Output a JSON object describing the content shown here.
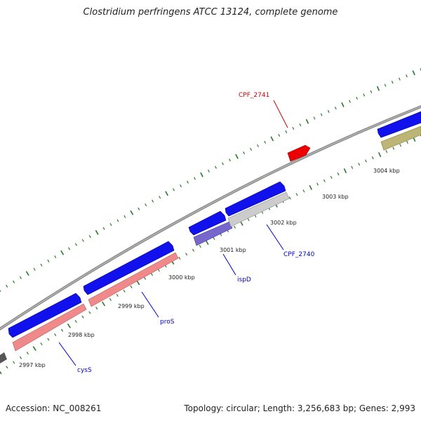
{
  "title": "Clostridium perfringens ATCC 13124, complete genome",
  "footer": {
    "accession": "Accession: NC_008261",
    "summary": "Topology: circular; Length: 3,256,683 bp; Genes: 2,993"
  },
  "scale_labels": [
    "2997 kbp",
    "2998 kbp",
    "2999 kbp",
    "3000 kbp",
    "3001 kbp",
    "3002 kbp",
    "3003 kbp",
    "3004 kbp"
  ],
  "gene_labels": [
    {
      "id": "cysS",
      "text": "cysS",
      "color": "#0000cc"
    },
    {
      "id": "proS",
      "text": "proS",
      "color": "#0000cc"
    },
    {
      "id": "ispD",
      "text": "ispD",
      "color": "#0000cc"
    },
    {
      "id": "CPF_2740",
      "text": "CPF_2740",
      "color": "#0000cc"
    },
    {
      "id": "CPF_2741",
      "text": "CPF_2741",
      "color": "#cc0000"
    }
  ],
  "colors": {
    "backbone": "#8a8a8a",
    "tick": "#2a7a2a",
    "cds": "#0000ee",
    "rna_pink": "#f08080",
    "gray_feature": "#c8c8c8",
    "purple_feature": "#7766cc",
    "olive_feature": "#b8b070",
    "red_feature": "#ee0000"
  }
}
